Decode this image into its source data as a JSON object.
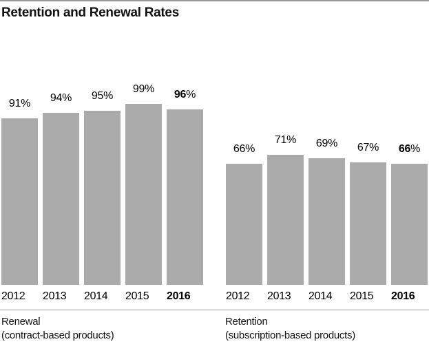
{
  "title": "Retention and Renewal Rates",
  "percent_sign": "%",
  "colors": {
    "bar": "#ababab",
    "rule": "#999999",
    "text": "#000000"
  },
  "chart_data": [
    {
      "type": "bar",
      "title": "Renewal",
      "subtitle": "(contract-based products)",
      "categories": [
        "2012",
        "2013",
        "2014",
        "2015",
        "2016"
      ],
      "values": [
        91,
        94,
        95,
        99,
        96
      ],
      "value_labels": [
        "91%",
        "94%",
        "95%",
        "99%",
        "96%"
      ],
      "ylim": [
        0,
        100
      ],
      "emphasized_category": "2016",
      "legend_position": "none",
      "grid": false
    },
    {
      "type": "bar",
      "title": "Retention",
      "subtitle": "(subscription-based products)",
      "categories": [
        "2012",
        "2013",
        "2014",
        "2015",
        "2016"
      ],
      "values": [
        66,
        71,
        69,
        67,
        66
      ],
      "value_labels": [
        "66%",
        "71%",
        "69%",
        "67%",
        "66%"
      ],
      "ylim": [
        0,
        100
      ],
      "emphasized_category": "2016",
      "legend_position": "none",
      "grid": false
    }
  ]
}
